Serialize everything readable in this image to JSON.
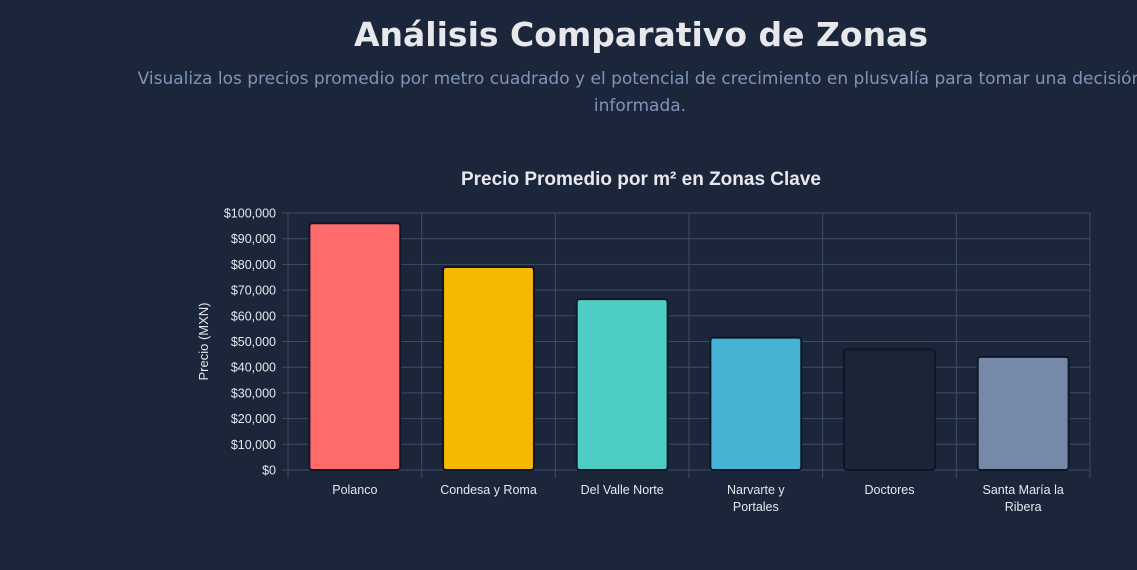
{
  "header": {
    "title": "Análisis Comparativo de Zonas",
    "subtitle": "Visualiza los precios promedio por metro cuadrado y el potencial de crecimiento en plusvalía para tomar una decisión informada."
  },
  "chart_data": {
    "type": "bar",
    "title": "Precio Promedio por m² en Zonas Clave",
    "xlabel": "",
    "ylabel": "Precio (MXN)",
    "categories": [
      [
        "Polanco"
      ],
      [
        "Condesa y Roma"
      ],
      [
        "Del Valle Norte"
      ],
      [
        "Narvarte y",
        "Portales"
      ],
      [
        "Doctores"
      ],
      [
        "Santa María la",
        "Ribera"
      ]
    ],
    "values": [
      96000,
      79000,
      66500,
      51500,
      47000,
      44000
    ],
    "colors": [
      "#ff6b6b",
      "#f5b800",
      "#4ecdc4",
      "#45b3d3",
      "#1c2538",
      "#7689a8"
    ],
    "ylim": [
      0,
      100000
    ],
    "ytick_step": 10000,
    "ytick_format": "currency",
    "grid": true,
    "legend": "none"
  }
}
